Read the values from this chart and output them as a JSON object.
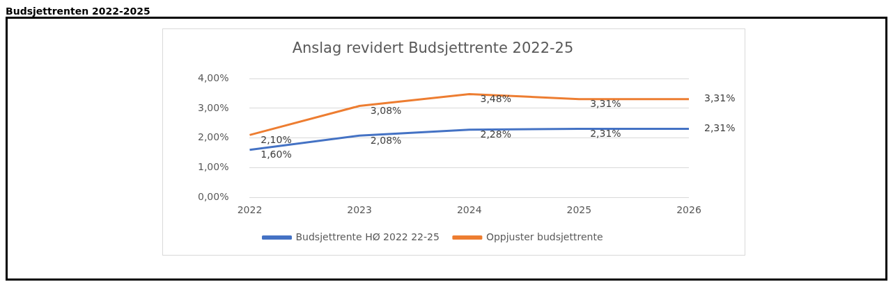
{
  "chart_data": {
    "type": "line",
    "title": "Anslag revidert Budsjettrente 2022-25",
    "annotations": [
      "Budsjettrenten 2022-2025"
    ],
    "categories": [
      "2022",
      "2023",
      "2024",
      "2025",
      "2026"
    ],
    "series": [
      {
        "name": "Budsjettrente HØ 2022 22-25",
        "color": "#4472c4",
        "values": [
          1.6,
          2.08,
          2.28,
          2.31,
          2.31
        ],
        "value_labels": [
          "1,60%",
          "2,08%",
          "2,28%",
          "2,31%",
          "2,31%"
        ]
      },
      {
        "name": "Oppjuster budsjettrente",
        "color": "#ed7d31",
        "values": [
          2.1,
          3.08,
          3.48,
          3.31,
          3.31
        ],
        "value_labels": [
          "2,10%",
          "3,08%",
          "3,48%",
          "3,31%",
          "3,31%"
        ]
      }
    ],
    "ylim": [
      0,
      4
    ],
    "yticks": [
      {
        "value": 0,
        "label": "0,00%"
      },
      {
        "value": 1,
        "label": "1,00%"
      },
      {
        "value": 2,
        "label": "2,00%"
      },
      {
        "value": 3,
        "label": "3,00%"
      },
      {
        "value": 4,
        "label": "4,00%"
      }
    ],
    "grid": "y",
    "legend": "bottom",
    "marker": "none",
    "line_style": "solid"
  }
}
